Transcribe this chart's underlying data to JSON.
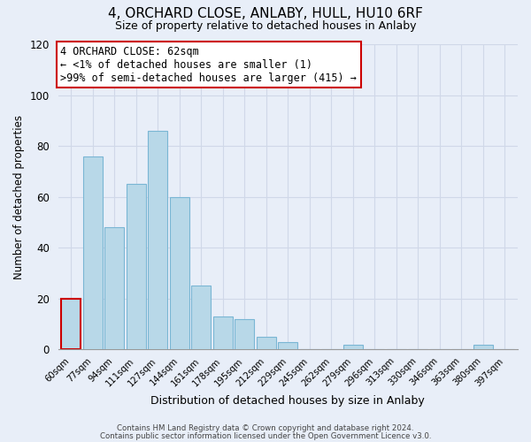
{
  "title": "4, ORCHARD CLOSE, ANLABY, HULL, HU10 6RF",
  "subtitle": "Size of property relative to detached houses in Anlaby",
  "xlabel": "Distribution of detached houses by size in Anlaby",
  "ylabel": "Number of detached properties",
  "bar_labels": [
    "60sqm",
    "77sqm",
    "94sqm",
    "111sqm",
    "127sqm",
    "144sqm",
    "161sqm",
    "178sqm",
    "195sqm",
    "212sqm",
    "229sqm",
    "245sqm",
    "262sqm",
    "279sqm",
    "296sqm",
    "313sqm",
    "330sqm",
    "346sqm",
    "363sqm",
    "380sqm",
    "397sqm"
  ],
  "bar_values": [
    20,
    76,
    48,
    65,
    86,
    60,
    25,
    13,
    12,
    5,
    3,
    0,
    0,
    2,
    0,
    0,
    0,
    0,
    0,
    2,
    0
  ],
  "bar_color": "#b8d8e8",
  "bar_edge_color": "#7ab6d4",
  "highlight_bar_index": 0,
  "highlight_color": "#cc0000",
  "annotation_line1": "4 ORCHARD CLOSE: 62sqm",
  "annotation_line2": "← <1% of detached houses are smaller (1)",
  "annotation_line3": ">99% of semi-detached houses are larger (415) →",
  "ylim": [
    0,
    120
  ],
  "yticks": [
    0,
    20,
    40,
    60,
    80,
    100,
    120
  ],
  "footnote1": "Contains HM Land Registry data © Crown copyright and database right 2024.",
  "footnote2": "Contains public sector information licensed under the Open Government Licence v3.0.",
  "background_color": "#e8eef8",
  "grid_color": "#d0d8e8",
  "title_fontsize": 11,
  "subtitle_fontsize": 9
}
